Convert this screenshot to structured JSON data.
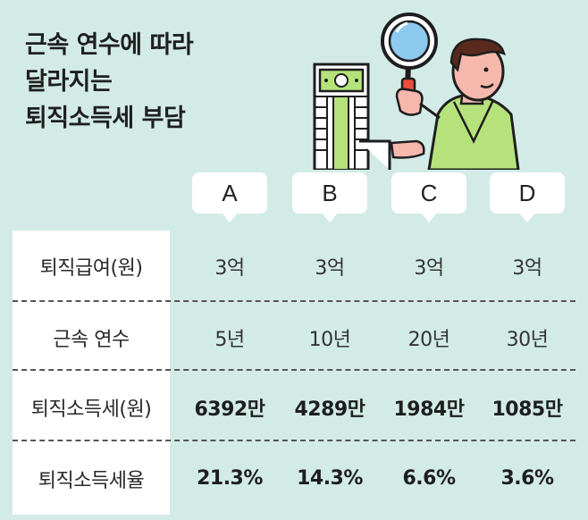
{
  "title": {
    "line1": "근속 연수에 따라",
    "line2": "달라지는",
    "line3": "퇴직소득세 부담"
  },
  "columns": [
    "A",
    "B",
    "C",
    "D"
  ],
  "rows": [
    {
      "label": "퇴직급여(원)",
      "values": [
        "3억",
        "3억",
        "3억",
        "3억"
      ],
      "bold": false
    },
    {
      "label": "근속 연수",
      "values": [
        "5년",
        "10년",
        "20년",
        "30년"
      ],
      "bold": false
    },
    {
      "label": "퇴직소득세(원)",
      "values": [
        "6392만",
        "4289만",
        "1984만",
        "1085만"
      ],
      "bold": true
    },
    {
      "label": "퇴직소득세율",
      "values": [
        "21.3%",
        "14.3%",
        "6.6%",
        "3.6%"
      ],
      "bold": true
    }
  ],
  "colors": {
    "background": "#d3ebe6",
    "illustration_shirt": "#b5e27a",
    "illustration_money": "#b5e27a"
  },
  "icons": [
    "magnifier-icon",
    "money-stack-icon",
    "person-illustration"
  ]
}
